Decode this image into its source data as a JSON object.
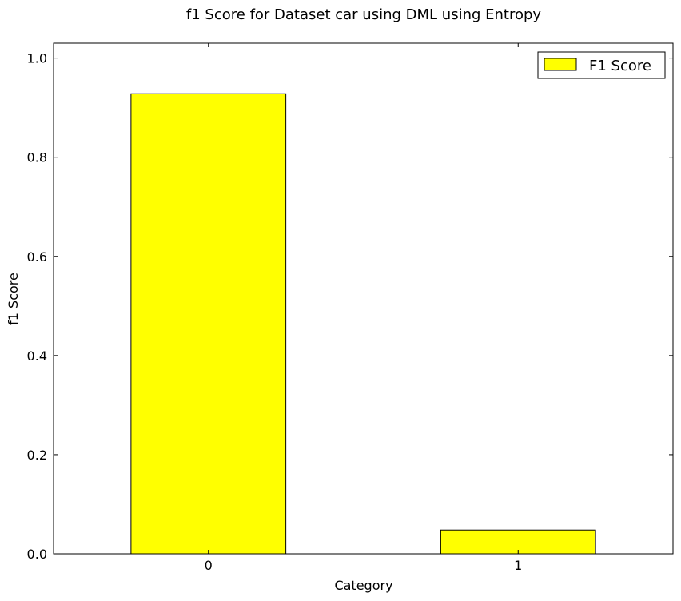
{
  "chart_data": {
    "type": "bar",
    "title": "f1 Score for Dataset car using DML using Entropy",
    "xlabel": "Category",
    "ylabel": "f1 Score",
    "categories": [
      "0",
      "1"
    ],
    "series": [
      {
        "name": "F1 Score",
        "values": [
          0.928,
          0.048
        ],
        "color": "#ffff00"
      }
    ],
    "ylim": [
      0,
      1.03
    ],
    "yticks": [
      0.0,
      0.2,
      0.4,
      0.6,
      0.8,
      1.0
    ],
    "ytick_labels": [
      "0.0",
      "0.2",
      "0.4",
      "0.6",
      "0.8",
      "1.0"
    ],
    "grid": false,
    "legend_position": "top-right"
  }
}
